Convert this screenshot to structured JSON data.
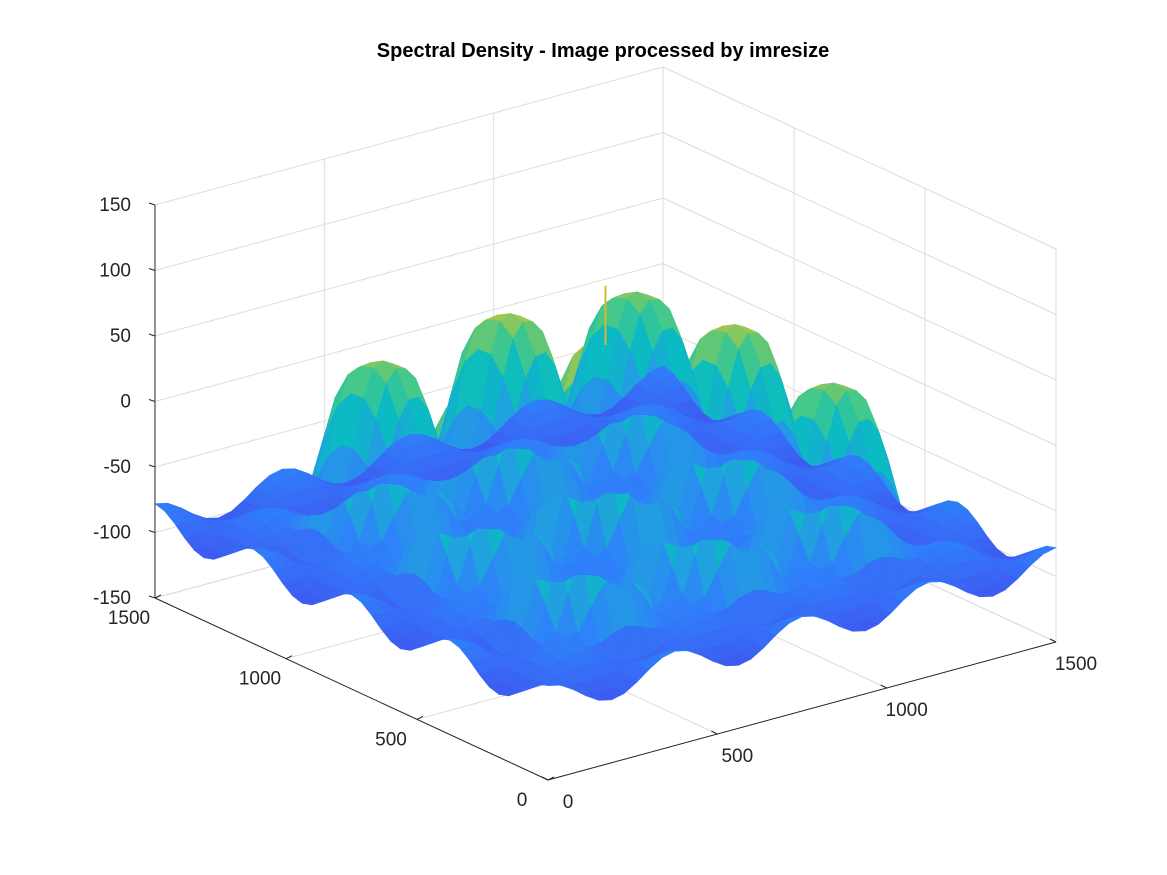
{
  "chart_data": {
    "type": "surface",
    "title": "Spectral Density - Image processed by imresize",
    "xlabel": "",
    "ylabel": "",
    "zlabel": "",
    "x_ticks": [
      "0",
      "500",
      "1000",
      "1500"
    ],
    "y_ticks": [
      "0",
      "500",
      "1000",
      "1500"
    ],
    "z_ticks": [
      "-150",
      "-100",
      "-50",
      "0",
      "50",
      "100",
      "150"
    ],
    "xlim": [
      0,
      1500
    ],
    "ylim": [
      0,
      1500
    ],
    "zlim": [
      -150,
      150
    ],
    "grid": true,
    "colormap": "parula",
    "colormap_stops": [
      "#3e26a8",
      "#4250ef",
      "#2f80fa",
      "#1fa3dc",
      "#09bcc1",
      "#3fc88d",
      "#a7c64a",
      "#e6b22f",
      "#f9e22f"
    ],
    "peaks": [
      {
        "x": 750,
        "y": 750,
        "z": 105,
        "label": "dc-spike"
      },
      {
        "x": 750,
        "y": 750,
        "z": 60
      },
      {
        "x": 1125,
        "y": 750,
        "z": 45
      },
      {
        "x": 750,
        "y": 1125,
        "z": 45
      },
      {
        "x": 375,
        "y": 750,
        "z": 45
      },
      {
        "x": 750,
        "y": 375,
        "z": 45
      },
      {
        "x": 1125,
        "y": 1125,
        "z": 35
      },
      {
        "x": 375,
        "y": 375,
        "z": 35
      },
      {
        "x": 1125,
        "y": 375,
        "z": 35
      },
      {
        "x": 375,
        "y": 1125,
        "z": 35
      }
    ],
    "floor_z": -90
  }
}
